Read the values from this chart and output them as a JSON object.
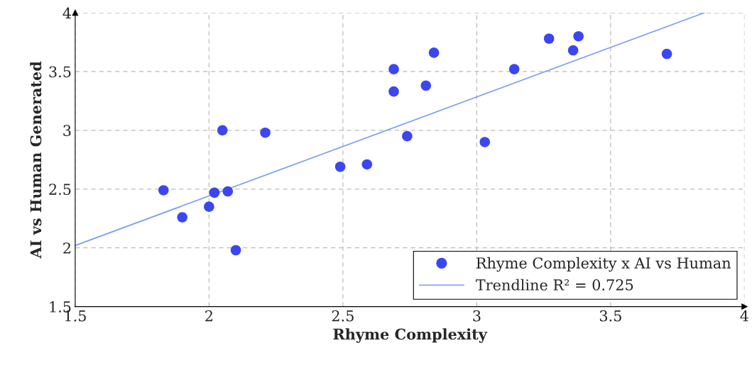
{
  "chart_data": {
    "type": "scatter",
    "xlabel": "Rhyme Complexity",
    "ylabel": "AI vs Human Generated",
    "xlim": [
      1.5,
      4
    ],
    "ylim": [
      1.5,
      4
    ],
    "xticks": [
      1.5,
      2,
      2.5,
      3,
      3.5,
      4
    ],
    "yticks": [
      1.5,
      2,
      2.5,
      3,
      3.5,
      4
    ],
    "grid": true,
    "legend": "bottom right",
    "series": [
      {
        "name": "Rhyme Complexity x AI vs Human",
        "marker": "circle",
        "color": "#3b46f2",
        "x": [
          1.83,
          1.9,
          2.0,
          2.02,
          2.05,
          2.07,
          2.1,
          2.21,
          2.49,
          2.59,
          2.69,
          2.69,
          2.74,
          2.81,
          2.84,
          3.03,
          3.14,
          3.27,
          3.36,
          3.38,
          3.71
        ],
        "values": [
          2.49,
          2.26,
          2.35,
          2.47,
          3.0,
          2.48,
          1.98,
          2.98,
          2.69,
          2.71,
          3.52,
          3.33,
          2.95,
          3.38,
          3.66,
          2.9,
          3.52,
          3.78,
          3.68,
          3.8,
          3.65
        ]
      },
      {
        "name": "Trendline R² = 0.725",
        "type": "line",
        "color": "#7b9cf2",
        "line_style": "solid",
        "marker": "none",
        "x": [
          1.5,
          3.85
        ],
        "values": [
          2.02,
          4.0
        ]
      }
    ]
  }
}
